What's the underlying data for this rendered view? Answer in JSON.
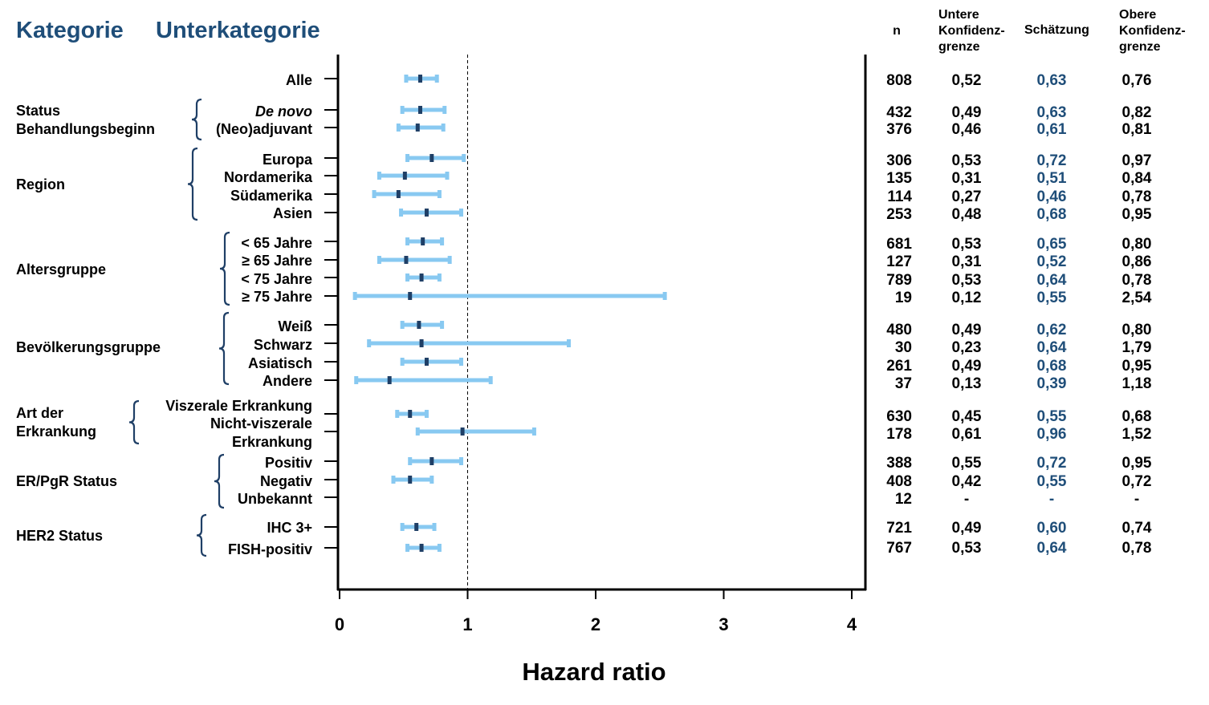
{
  "header": {
    "kategorie": "Kategorie",
    "unterkategorie": "Unterkategorie",
    "col_n": "n",
    "col_lower": [
      "Untere",
      "Konfidenz-",
      "grenze"
    ],
    "col_est": "Schätzung",
    "col_upper": [
      "Obere",
      "Konfidenz-",
      "grenze"
    ]
  },
  "chart_data": {
    "type": "forest",
    "xlabel": "Hazard ratio",
    "xlim": [
      0,
      4.1
    ],
    "xticks": [
      "0",
      "1",
      "2",
      "3",
      "4"
    ],
    "reference_line": 1,
    "categories": [
      {
        "lines": [],
        "rows": [
          0
        ]
      },
      {
        "lines": [
          "Status",
          "Behandlungsbeginn"
        ],
        "rows": [
          1,
          2
        ]
      },
      {
        "lines": [
          "Region"
        ],
        "rows": [
          3,
          4,
          5,
          6
        ]
      },
      {
        "lines": [
          "Altersgruppe"
        ],
        "rows": [
          7,
          8,
          9,
          10
        ]
      },
      {
        "lines": [
          "Bevölkerungsgruppe"
        ],
        "rows": [
          11,
          12,
          13,
          14
        ]
      },
      {
        "lines": [
          "Art der",
          "Erkrankung"
        ],
        "rows": [
          15,
          16
        ]
      },
      {
        "lines": [
          "ER/PgR Status"
        ],
        "rows": [
          17,
          18,
          19
        ]
      },
      {
        "lines": [
          "HER2 Status"
        ],
        "rows": [
          20,
          21
        ]
      }
    ],
    "rows": [
      {
        "label": "Alle",
        "n": "808",
        "lower": 0.52,
        "estimate": 0.63,
        "upper": 0.76,
        "lower_text": "0,52",
        "est_text": "0,63",
        "upper_text": "0,76"
      },
      {
        "label": "De novo",
        "italic": true,
        "n": "432",
        "lower": 0.49,
        "estimate": 0.63,
        "upper": 0.82,
        "lower_text": "0,49",
        "est_text": "0,63",
        "upper_text": "0,82"
      },
      {
        "label": "(Neo)adjuvant",
        "n": "376",
        "lower": 0.46,
        "estimate": 0.61,
        "upper": 0.81,
        "lower_text": "0,46",
        "est_text": "0,61",
        "upper_text": "0,81"
      },
      {
        "label": "Europa",
        "n": "306",
        "lower": 0.53,
        "estimate": 0.72,
        "upper": 0.97,
        "lower_text": "0,53",
        "est_text": "0,72",
        "upper_text": "0,97"
      },
      {
        "label": "Nordamerika",
        "n": "135",
        "lower": 0.31,
        "estimate": 0.51,
        "upper": 0.84,
        "lower_text": "0,31",
        "est_text": "0,51",
        "upper_text": "0,84"
      },
      {
        "label": "Südamerika",
        "n": "114",
        "lower": 0.27,
        "estimate": 0.46,
        "upper": 0.78,
        "lower_text": "0,27",
        "est_text": "0,46",
        "upper_text": "0,78"
      },
      {
        "label": "Asien",
        "n": "253",
        "lower": 0.48,
        "estimate": 0.68,
        "upper": 0.95,
        "lower_text": "0,48",
        "est_text": "0,68",
        "upper_text": "0,95"
      },
      {
        "label": "< 65 Jahre",
        "n": "681",
        "lower": 0.53,
        "estimate": 0.65,
        "upper": 0.8,
        "lower_text": "0,53",
        "est_text": "0,65",
        "upper_text": "0,80"
      },
      {
        "label": "≥ 65 Jahre",
        "n": "127",
        "lower": 0.31,
        "estimate": 0.52,
        "upper": 0.86,
        "lower_text": "0,31",
        "est_text": "0,52",
        "upper_text": "0,86"
      },
      {
        "label": "< 75 Jahre",
        "n": "789",
        "lower": 0.53,
        "estimate": 0.64,
        "upper": 0.78,
        "lower_text": "0,53",
        "est_text": "0,64",
        "upper_text": "0,78"
      },
      {
        "label": "≥ 75 Jahre",
        "n": "19",
        "lower": 0.12,
        "estimate": 0.55,
        "upper": 2.54,
        "lower_text": "0,12",
        "est_text": "0,55",
        "upper_text": "2,54"
      },
      {
        "label": "Weiß",
        "n": "480",
        "lower": 0.49,
        "estimate": 0.62,
        "upper": 0.8,
        "lower_text": "0,49",
        "est_text": "0,62",
        "upper_text": "0,80"
      },
      {
        "label": "Schwarz",
        "n": "30",
        "lower": 0.23,
        "estimate": 0.64,
        "upper": 1.79,
        "lower_text": "0,23",
        "est_text": "0,64",
        "upper_text": "1,79"
      },
      {
        "label": "Asiatisch",
        "n": "261",
        "lower": 0.49,
        "estimate": 0.68,
        "upper": 0.95,
        "lower_text": "0,49",
        "est_text": "0,68",
        "upper_text": "0,95"
      },
      {
        "label": "Andere",
        "n": "37",
        "lower": 0.13,
        "estimate": 0.39,
        "upper": 1.18,
        "lower_text": "0,13",
        "est_text": "0,39",
        "upper_text": "1,18"
      },
      {
        "label": "Viszerale Erkrankung",
        "n": "630",
        "lower": 0.45,
        "estimate": 0.55,
        "upper": 0.68,
        "lower_text": "0,45",
        "est_text": "0,55",
        "upper_text": "0,68"
      },
      {
        "label": "Nicht-viszerale Erkrankung",
        "label_lines": [
          "Nicht-viszerale",
          "Erkrankung"
        ],
        "n": "178",
        "lower": 0.61,
        "estimate": 0.96,
        "upper": 1.52,
        "lower_text": "0,61",
        "est_text": "0,96",
        "upper_text": "1,52"
      },
      {
        "label": "Positiv",
        "n": "388",
        "lower": 0.55,
        "estimate": 0.72,
        "upper": 0.95,
        "lower_text": "0,55",
        "est_text": "0,72",
        "upper_text": "0,95"
      },
      {
        "label": "Negativ",
        "n": "408",
        "lower": 0.42,
        "estimate": 0.55,
        "upper": 0.72,
        "lower_text": "0,42",
        "est_text": "0,55",
        "upper_text": "0,72"
      },
      {
        "label": "Unbekannt",
        "n": "12",
        "lower": null,
        "estimate": null,
        "upper": null,
        "lower_text": "-",
        "est_text": "-",
        "upper_text": "-"
      },
      {
        "label": "IHC 3+",
        "n": "721",
        "lower": 0.49,
        "estimate": 0.6,
        "upper": 0.74,
        "lower_text": "0,49",
        "est_text": "0,60",
        "upper_text": "0,74"
      },
      {
        "label": "FISH-positiv",
        "n": "767",
        "lower": 0.53,
        "estimate": 0.64,
        "upper": 0.78,
        "lower_text": "0,53",
        "est_text": "0,64",
        "upper_text": "0,78"
      }
    ]
  }
}
